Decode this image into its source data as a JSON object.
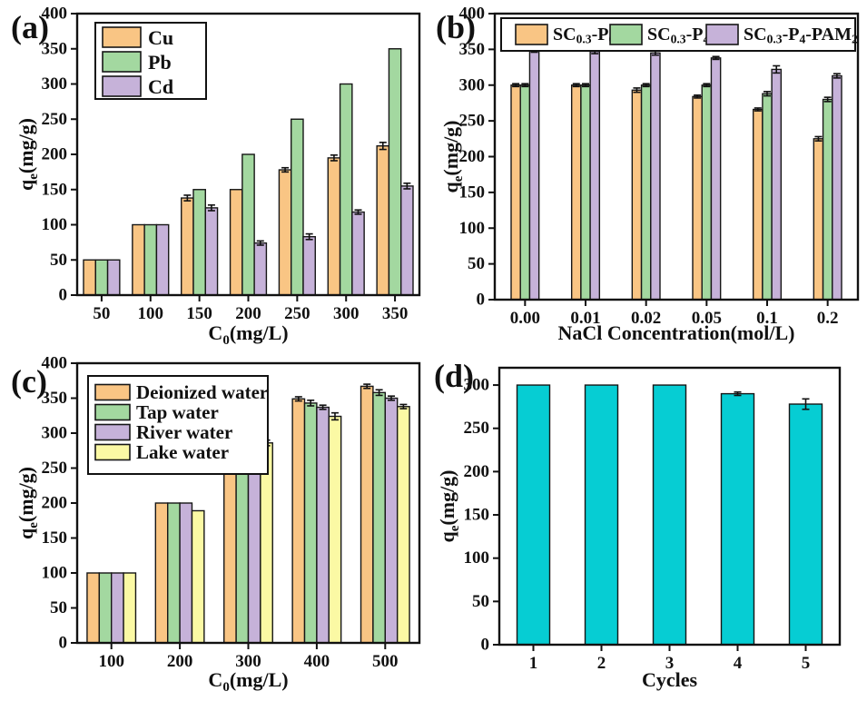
{
  "figure": {
    "background": "#ffffff",
    "axis_color": "#111111",
    "bar_stroke": "#161616"
  },
  "chart_data": [
    {
      "id": "a",
      "panel_label": "(a)",
      "type": "bar",
      "title": "",
      "xlabel": "C_{0}(mg/L)",
      "ylabel": "q_{e}(mg/g)",
      "ylim": [
        0,
        400
      ],
      "ytick_step": 50,
      "grid": false,
      "legend_position": "upper-left-vertical",
      "categories": [
        "50",
        "100",
        "150",
        "200",
        "250",
        "300",
        "350"
      ],
      "series": [
        {
          "name": "Cu",
          "color": "#F9C584",
          "values": [
            50,
            100,
            138,
            150,
            178,
            195,
            212
          ],
          "errors": [
            0,
            0,
            4,
            0,
            3,
            4,
            5
          ]
        },
        {
          "name": "Pb",
          "color": "#A3D8A0",
          "values": [
            50,
            100,
            150,
            200,
            250,
            300,
            350
          ],
          "errors": [
            0,
            0,
            0,
            0,
            0,
            0,
            0
          ]
        },
        {
          "name": "Cd",
          "color": "#C6B2D9",
          "values": [
            50,
            100,
            124,
            74,
            83,
            118,
            155
          ],
          "errors": [
            0,
            0,
            4,
            3,
            4,
            3,
            4
          ]
        }
      ]
    },
    {
      "id": "b",
      "panel_label": "(b)",
      "type": "bar",
      "title": "",
      "xlabel": "NaCl Concentration(mol/L)",
      "ylabel": "q_{e}(mg/g)",
      "ylim": [
        0,
        400
      ],
      "ytick_step": 50,
      "grid": false,
      "legend_position": "top-horizontal",
      "categories": [
        "0.00",
        "0.01",
        "0.02",
        "0.05",
        "0.1",
        "0.2"
      ],
      "series": [
        {
          "name": "SC_{0.3}-P_{0}",
          "color": "#F9C584",
          "values": [
            300,
            300,
            293,
            284,
            266,
            225
          ],
          "errors": [
            2,
            2,
            3,
            2,
            2,
            3
          ]
        },
        {
          "name": "SC_{0.3}-P_{4}",
          "color": "#A3D8A0",
          "values": [
            300,
            300,
            300,
            300,
            288,
            280
          ],
          "errors": [
            2,
            2,
            2,
            2,
            3,
            3
          ]
        },
        {
          "name": "SC_{0.3}-P_{4}-PAM_{2}",
          "color": "#C6B2D9",
          "values": [
            352,
            347,
            345,
            338,
            322,
            313
          ],
          "errors": [
            6,
            3,
            3,
            2,
            5,
            3
          ]
        }
      ]
    },
    {
      "id": "c",
      "panel_label": "(c)",
      "type": "bar",
      "title": "",
      "xlabel": "C_{0}(mg/L)",
      "ylabel": "q_{e}(mg/g)",
      "ylim": [
        0,
        400
      ],
      "ytick_step": 50,
      "grid": false,
      "legend_position": "upper-left-vertical",
      "categories": [
        "100",
        "200",
        "300",
        "400",
        "500"
      ],
      "series": [
        {
          "name": "Deionized water",
          "color": "#F9C584",
          "values": [
            100,
            200,
            293,
            349,
            367
          ],
          "errors": [
            0,
            0,
            3,
            3,
            3
          ]
        },
        {
          "name": "Tap water",
          "color": "#A3D8A0",
          "values": [
            100,
            200,
            290,
            343,
            358
          ],
          "errors": [
            0,
            0,
            2,
            4,
            4
          ]
        },
        {
          "name": "River water",
          "color": "#C6B2D9",
          "values": [
            100,
            200,
            289,
            337,
            350
          ],
          "errors": [
            0,
            0,
            2,
            3,
            3
          ]
        },
        {
          "name": "Lake water",
          "color": "#FBF9A4",
          "values": [
            100,
            189,
            286,
            324,
            338
          ],
          "errors": [
            0,
            0,
            4,
            5,
            3
          ]
        }
      ]
    },
    {
      "id": "d",
      "panel_label": "(d)",
      "type": "bar",
      "title": "",
      "xlabel": "Cycles",
      "ylabel": "q_{e}(mg/g)",
      "ylim": [
        0,
        320
      ],
      "ytick_step": 50,
      "ytick_max": 300,
      "grid": false,
      "legend_position": "none",
      "categories": [
        "1",
        "2",
        "3",
        "4",
        "5"
      ],
      "series": [
        {
          "name": "qe",
          "color": "#06CDD3",
          "values": [
            300,
            300,
            300,
            290,
            278
          ],
          "errors": [
            0,
            0,
            0,
            2,
            6
          ]
        }
      ]
    }
  ]
}
